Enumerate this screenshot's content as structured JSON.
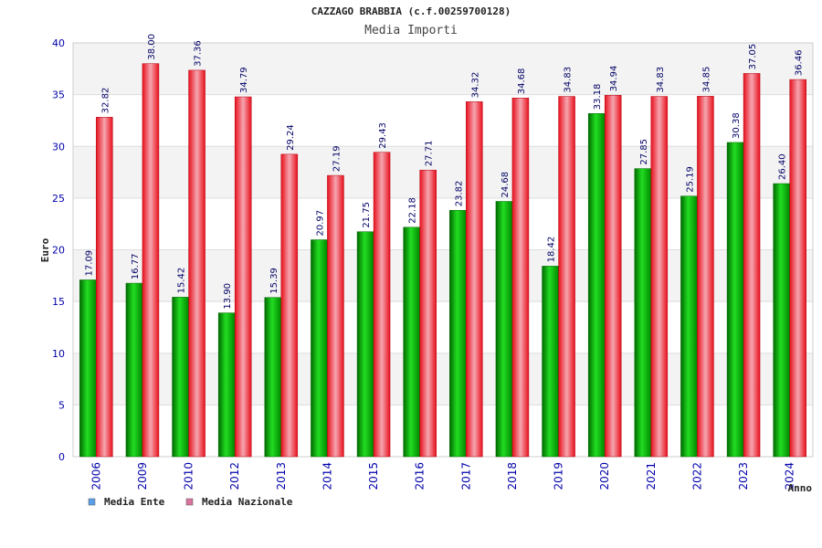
{
  "chart_data": {
    "type": "bar",
    "title": "CAZZAGO BRABBIA (c.f.00259700128)",
    "subtitle": "Media Importi",
    "xlabel": "Anno",
    "ylabel": "Euro",
    "ylim": [
      0,
      40
    ],
    "yticks": [
      0,
      5,
      10,
      15,
      20,
      25,
      30,
      35,
      40
    ],
    "grid": true,
    "legend_position": "bottom-left",
    "categories": [
      "2006",
      "2009",
      "2010",
      "2012",
      "2013",
      "2014",
      "2015",
      "2016",
      "2017",
      "2018",
      "2019",
      "2020",
      "2021",
      "2022",
      "2023",
      "2024"
    ],
    "series": [
      {
        "name": "Media Ente",
        "color": "#00aa00",
        "legend_color": "#5aa0e8",
        "values": [
          17.09,
          16.77,
          15.42,
          13.9,
          15.39,
          20.97,
          21.75,
          22.18,
          23.82,
          24.68,
          18.42,
          33.18,
          27.85,
          25.19,
          30.38,
          26.4
        ],
        "labels": [
          "17.09",
          "16.77",
          "15.42",
          "13.90",
          "15.39",
          "20.97",
          "21.75",
          "22.18",
          "23.82",
          "24.68",
          "18.42",
          "33.18",
          "27.85",
          "25.19",
          "30.38",
          "26.40"
        ]
      },
      {
        "name": "Media Nazionale",
        "color": "#e8101c",
        "legend_color": "#d9749e",
        "values": [
          32.82,
          38.0,
          37.36,
          34.79,
          29.24,
          27.19,
          29.43,
          27.71,
          34.32,
          34.68,
          34.83,
          34.94,
          34.83,
          34.85,
          37.05,
          36.46
        ],
        "labels": [
          "32.82",
          "38.00",
          "37.36",
          "34.79",
          "29.24",
          "27.19",
          "29.43",
          "27.71",
          "34.32",
          "34.68",
          "34.83",
          "34.94",
          "34.83",
          "34.85",
          "37.05",
          "36.46"
        ]
      }
    ]
  }
}
